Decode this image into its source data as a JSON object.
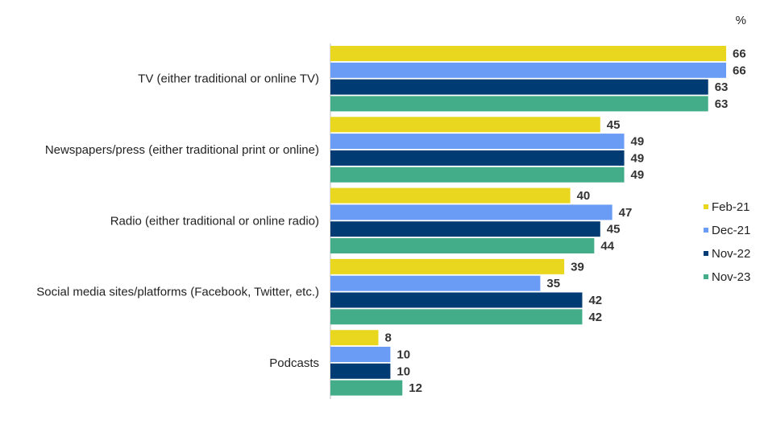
{
  "chart_data": {
    "type": "bar",
    "orientation": "horizontal",
    "unit": "%",
    "categories": [
      "TV (either traditional or online TV)",
      "Newspapers/press (either traditional print or online)",
      "Radio (either traditional or online radio)",
      "Social media sites/platforms (Facebook, Twitter, etc.)",
      "Podcasts"
    ],
    "series": [
      {
        "name": "Feb-21",
        "color": "#e8d61f",
        "values": [
          66,
          45,
          40,
          39,
          8
        ]
      },
      {
        "name": "Dec-21",
        "color": "#6a9cf5",
        "values": [
          66,
          49,
          47,
          35,
          10
        ]
      },
      {
        "name": "Nov-22",
        "color": "#003b73",
        "values": [
          63,
          49,
          45,
          42,
          10
        ]
      },
      {
        "name": "Nov-23",
        "color": "#43ad8a",
        "values": [
          63,
          49,
          44,
          42,
          12
        ]
      }
    ],
    "xlim": [
      0,
      66
    ],
    "grid": false,
    "legend": "right"
  }
}
